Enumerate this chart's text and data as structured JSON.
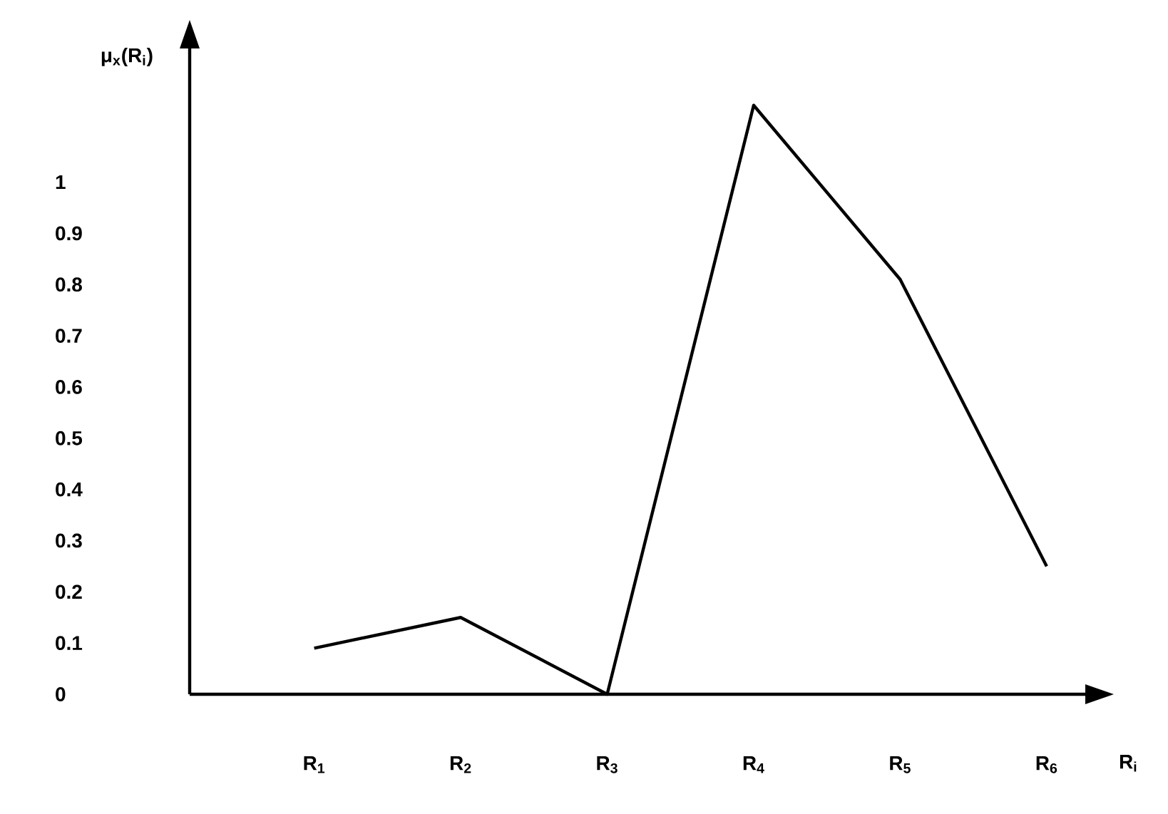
{
  "chart_data": {
    "type": "line",
    "xlabel": "R$_{i}$",
    "ylabel": "μ$_{x}$(R$_{i}$)",
    "categories": [
      "R$_{1}$",
      "R$_{2}$",
      "R$_{3}$",
      "R$_{4}$",
      "R$_{5}$",
      "R$_{6}$"
    ],
    "values": [
      0.09,
      0.15,
      0,
      1.15,
      0.81,
      0.25
    ],
    "color": "#000000",
    "ylim": [
      0,
      1.3
    ],
    "yticks": [
      0,
      0.1,
      0.2,
      0.3,
      0.4,
      0.5,
      0.6,
      0.7,
      0.8,
      0.9,
      1
    ],
    "grid": false
  }
}
